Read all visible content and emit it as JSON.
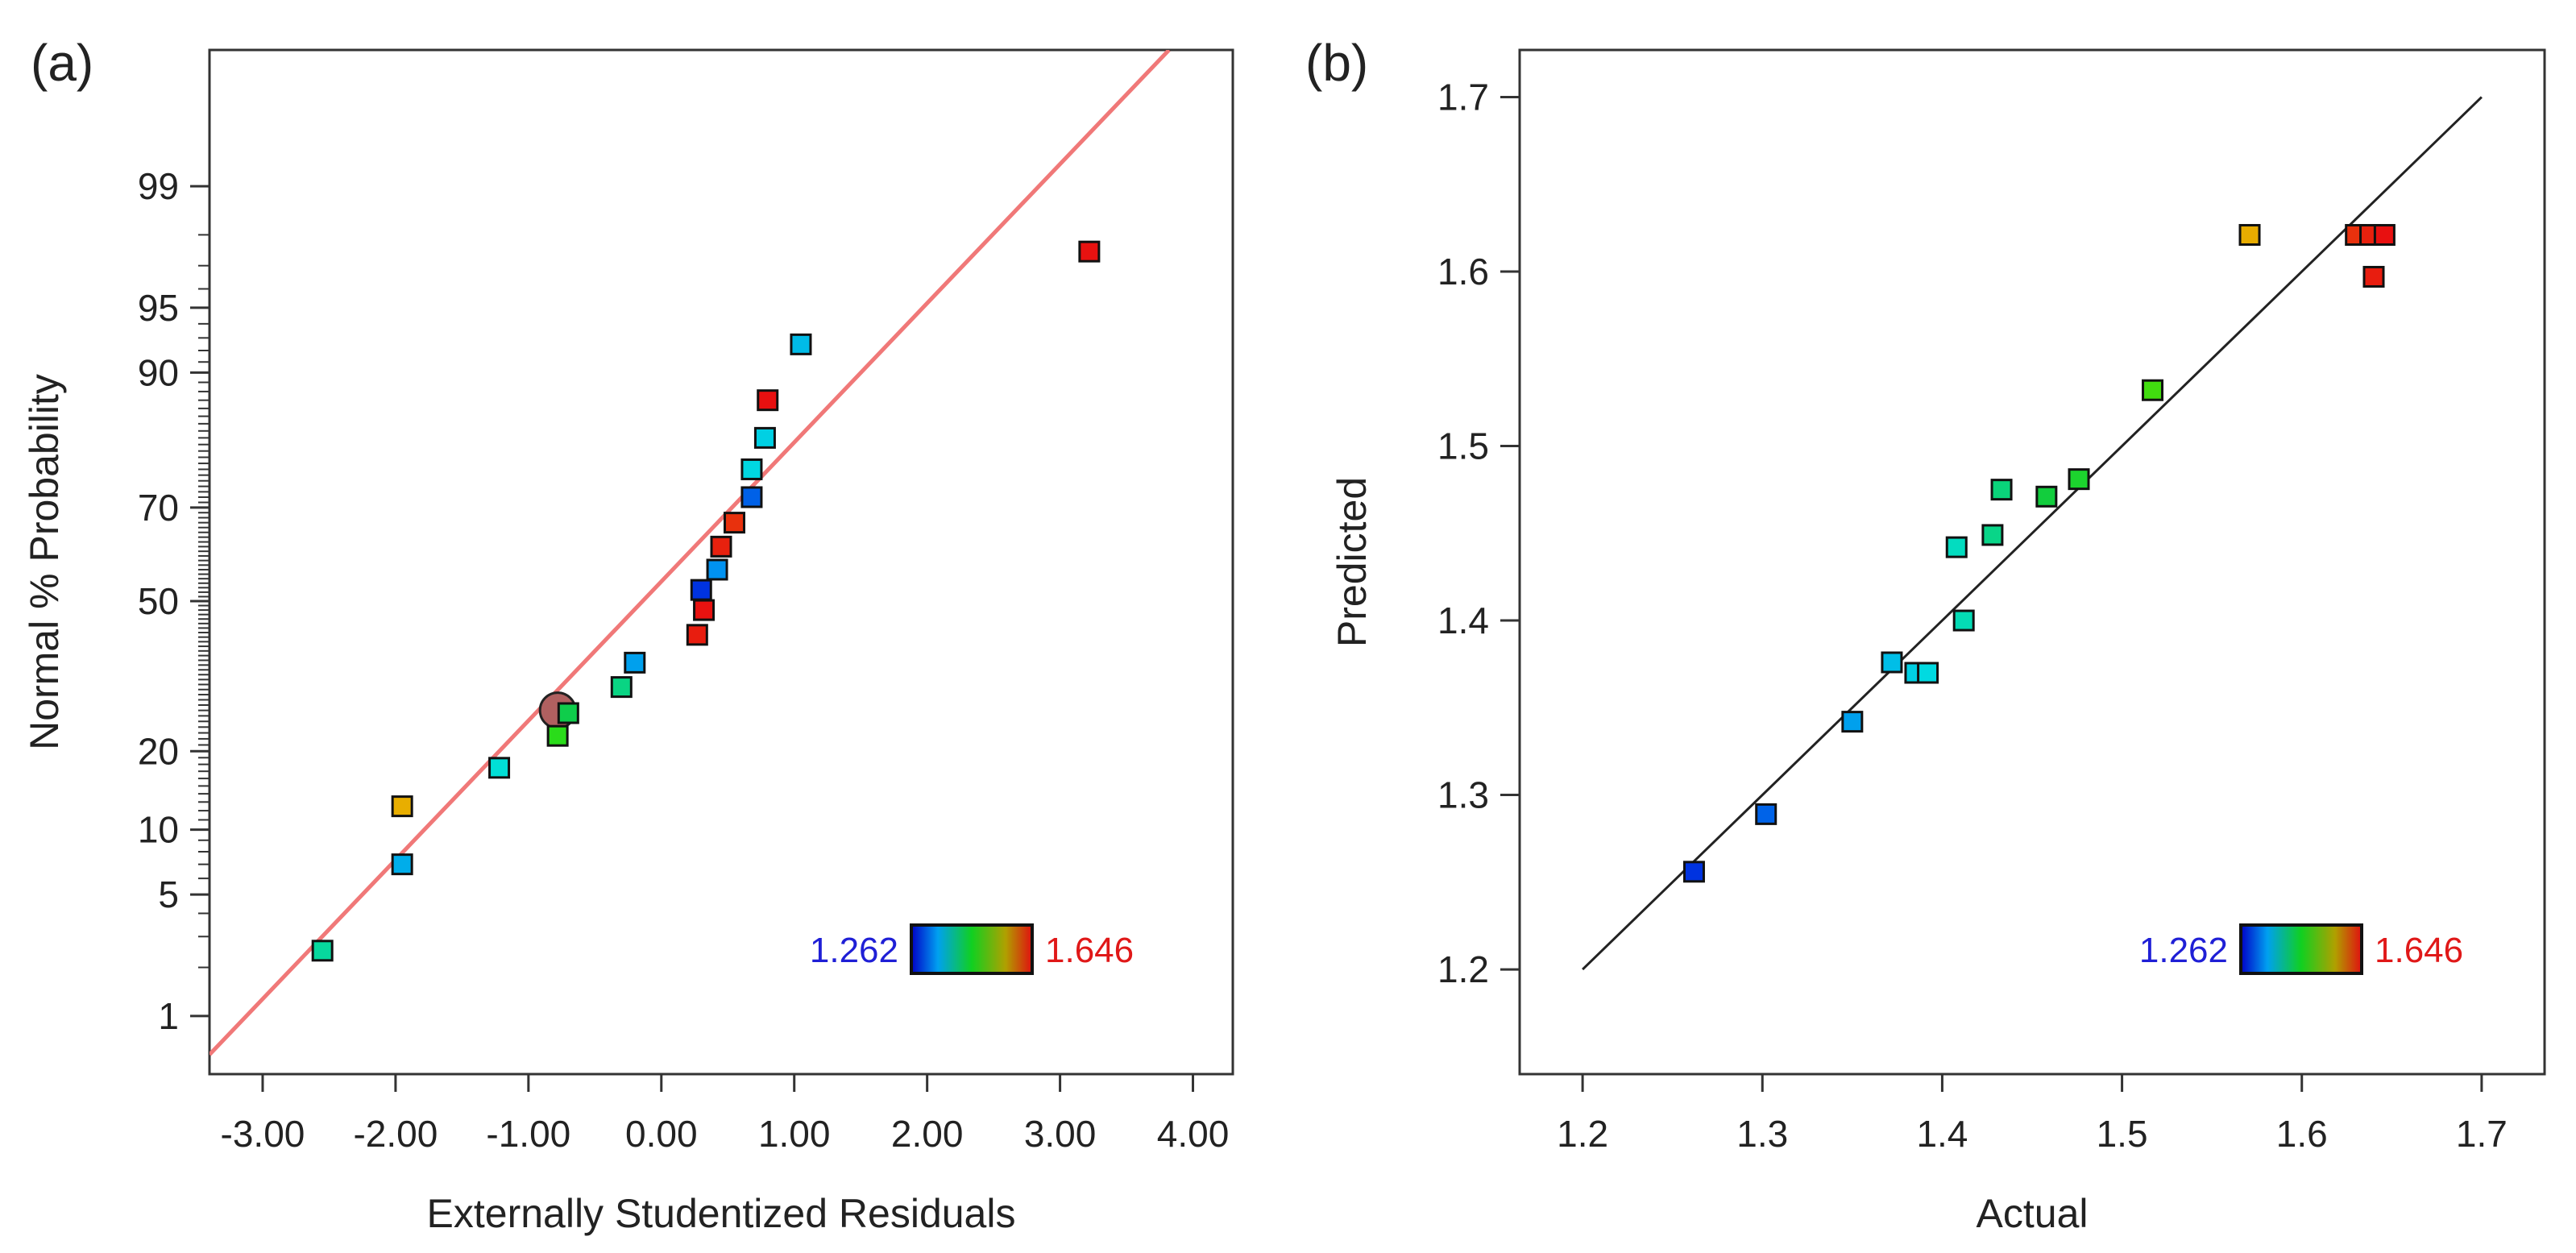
{
  "colors": {
    "low": "#1f1fd6",
    "high": "#e01818",
    "axis": "#333333",
    "fit_line_a": "#f07878",
    "fit_line_b": "#222222"
  },
  "chart_data": [
    {
      "panel_label": "(a)",
      "type": "scatter",
      "title": "",
      "xlabel": "Externally Studentized Residuals",
      "ylabel": "Normal % Probability",
      "xlim": [
        -3.4,
        4.3
      ],
      "ylim": [
        0.4,
        99.9
      ],
      "y_scale": "normal-probability",
      "x_ticks": [
        -3,
        -2,
        -1,
        0,
        1,
        2,
        3,
        4
      ],
      "x_tick_labels": [
        "-3.00",
        "-2.00",
        "-1.00",
        "0.00",
        "1.00",
        "2.00",
        "3.00",
        "4.00"
      ],
      "y_ticks": [
        1,
        5,
        10,
        20,
        50,
        70,
        90,
        95,
        99
      ],
      "y_tick_labels": [
        "1",
        "5",
        "10",
        "20",
        "50",
        "70",
        "90",
        "95",
        "99"
      ],
      "fit_line": {
        "x": [
          -3.4,
          3.82
        ],
        "y": [
          0.55,
          99.9
        ]
      },
      "color_scale": {
        "min_label": "1.262",
        "max_label": "1.646",
        "min": 1.262,
        "max": 1.646
      },
      "highlighted_point": {
        "x": -0.78,
        "y": 27
      },
      "points": [
        {
          "x": -2.55,
          "y": 2.5,
          "value": 1.42
        },
        {
          "x": -1.95,
          "y": 7,
          "value": 1.36
        },
        {
          "x": -1.95,
          "y": 12.5,
          "value": 1.57
        },
        {
          "x": -1.22,
          "y": 17.5,
          "value": 1.4
        },
        {
          "x": -0.78,
          "y": 22.5,
          "value": 1.5
        },
        {
          "x": -0.7,
          "y": 26.5,
          "value": 1.45
        },
        {
          "x": -0.3,
          "y": 31.5,
          "value": 1.43
        },
        {
          "x": -0.2,
          "y": 36.5,
          "value": 1.35
        },
        {
          "x": 0.27,
          "y": 42.5,
          "value": 1.64
        },
        {
          "x": 0.32,
          "y": 48,
          "value": 1.645
        },
        {
          "x": 0.3,
          "y": 52.5,
          "value": 1.262
        },
        {
          "x": 0.42,
          "y": 57,
          "value": 1.34
        },
        {
          "x": 0.45,
          "y": 62,
          "value": 1.638
        },
        {
          "x": 0.55,
          "y": 67,
          "value": 1.63
        },
        {
          "x": 0.68,
          "y": 72,
          "value": 1.3
        },
        {
          "x": 0.68,
          "y": 77,
          "value": 1.39
        },
        {
          "x": 0.78,
          "y": 82,
          "value": 1.385
        },
        {
          "x": 0.8,
          "y": 87,
          "value": 1.646
        },
        {
          "x": 1.05,
          "y": 92.5,
          "value": 1.37
        },
        {
          "x": 3.22,
          "y": 97.5,
          "value": 1.645
        }
      ]
    },
    {
      "panel_label": "(b)",
      "type": "scatter",
      "title": "",
      "xlabel": "Actual",
      "ylabel": "Predicted",
      "xlim": [
        1.165,
        1.735
      ],
      "ylim": [
        1.14,
        1.727
      ],
      "x_ticks": [
        1.2,
        1.3,
        1.4,
        1.5,
        1.6,
        1.7
      ],
      "x_tick_labels": [
        "1.2",
        "1.3",
        "1.4",
        "1.5",
        "1.6",
        "1.7"
      ],
      "y_ticks": [
        1.2,
        1.3,
        1.4,
        1.5,
        1.6,
        1.7
      ],
      "y_tick_labels": [
        "1.2",
        "1.3",
        "1.4",
        "1.5",
        "1.6",
        "1.7"
      ],
      "fit_line": {
        "x": [
          1.2,
          1.7
        ],
        "y": [
          1.2,
          1.7
        ]
      },
      "color_scale": {
        "min_label": "1.262",
        "max_label": "1.646",
        "min": 1.262,
        "max": 1.646
      },
      "points": [
        {
          "x": 1.262,
          "y": 1.256,
          "value": 1.262
        },
        {
          "x": 1.302,
          "y": 1.289,
          "value": 1.302
        },
        {
          "x": 1.35,
          "y": 1.342,
          "value": 1.35
        },
        {
          "x": 1.372,
          "y": 1.376,
          "value": 1.372
        },
        {
          "x": 1.385,
          "y": 1.37,
          "value": 1.385
        },
        {
          "x": 1.392,
          "y": 1.37,
          "value": 1.392
        },
        {
          "x": 1.408,
          "y": 1.442,
          "value": 1.408
        },
        {
          "x": 1.412,
          "y": 1.4,
          "value": 1.412
        },
        {
          "x": 1.428,
          "y": 1.449,
          "value": 1.428
        },
        {
          "x": 1.433,
          "y": 1.475,
          "value": 1.433
        },
        {
          "x": 1.458,
          "y": 1.471,
          "value": 1.458
        },
        {
          "x": 1.476,
          "y": 1.481,
          "value": 1.476
        },
        {
          "x": 1.517,
          "y": 1.532,
          "value": 1.517
        },
        {
          "x": 1.571,
          "y": 1.621,
          "value": 1.571
        },
        {
          "x": 1.63,
          "y": 1.621,
          "value": 1.63
        },
        {
          "x": 1.638,
          "y": 1.621,
          "value": 1.638
        },
        {
          "x": 1.64,
          "y": 1.597,
          "value": 1.64
        },
        {
          "x": 1.646,
          "y": 1.621,
          "value": 1.646
        }
      ]
    }
  ]
}
